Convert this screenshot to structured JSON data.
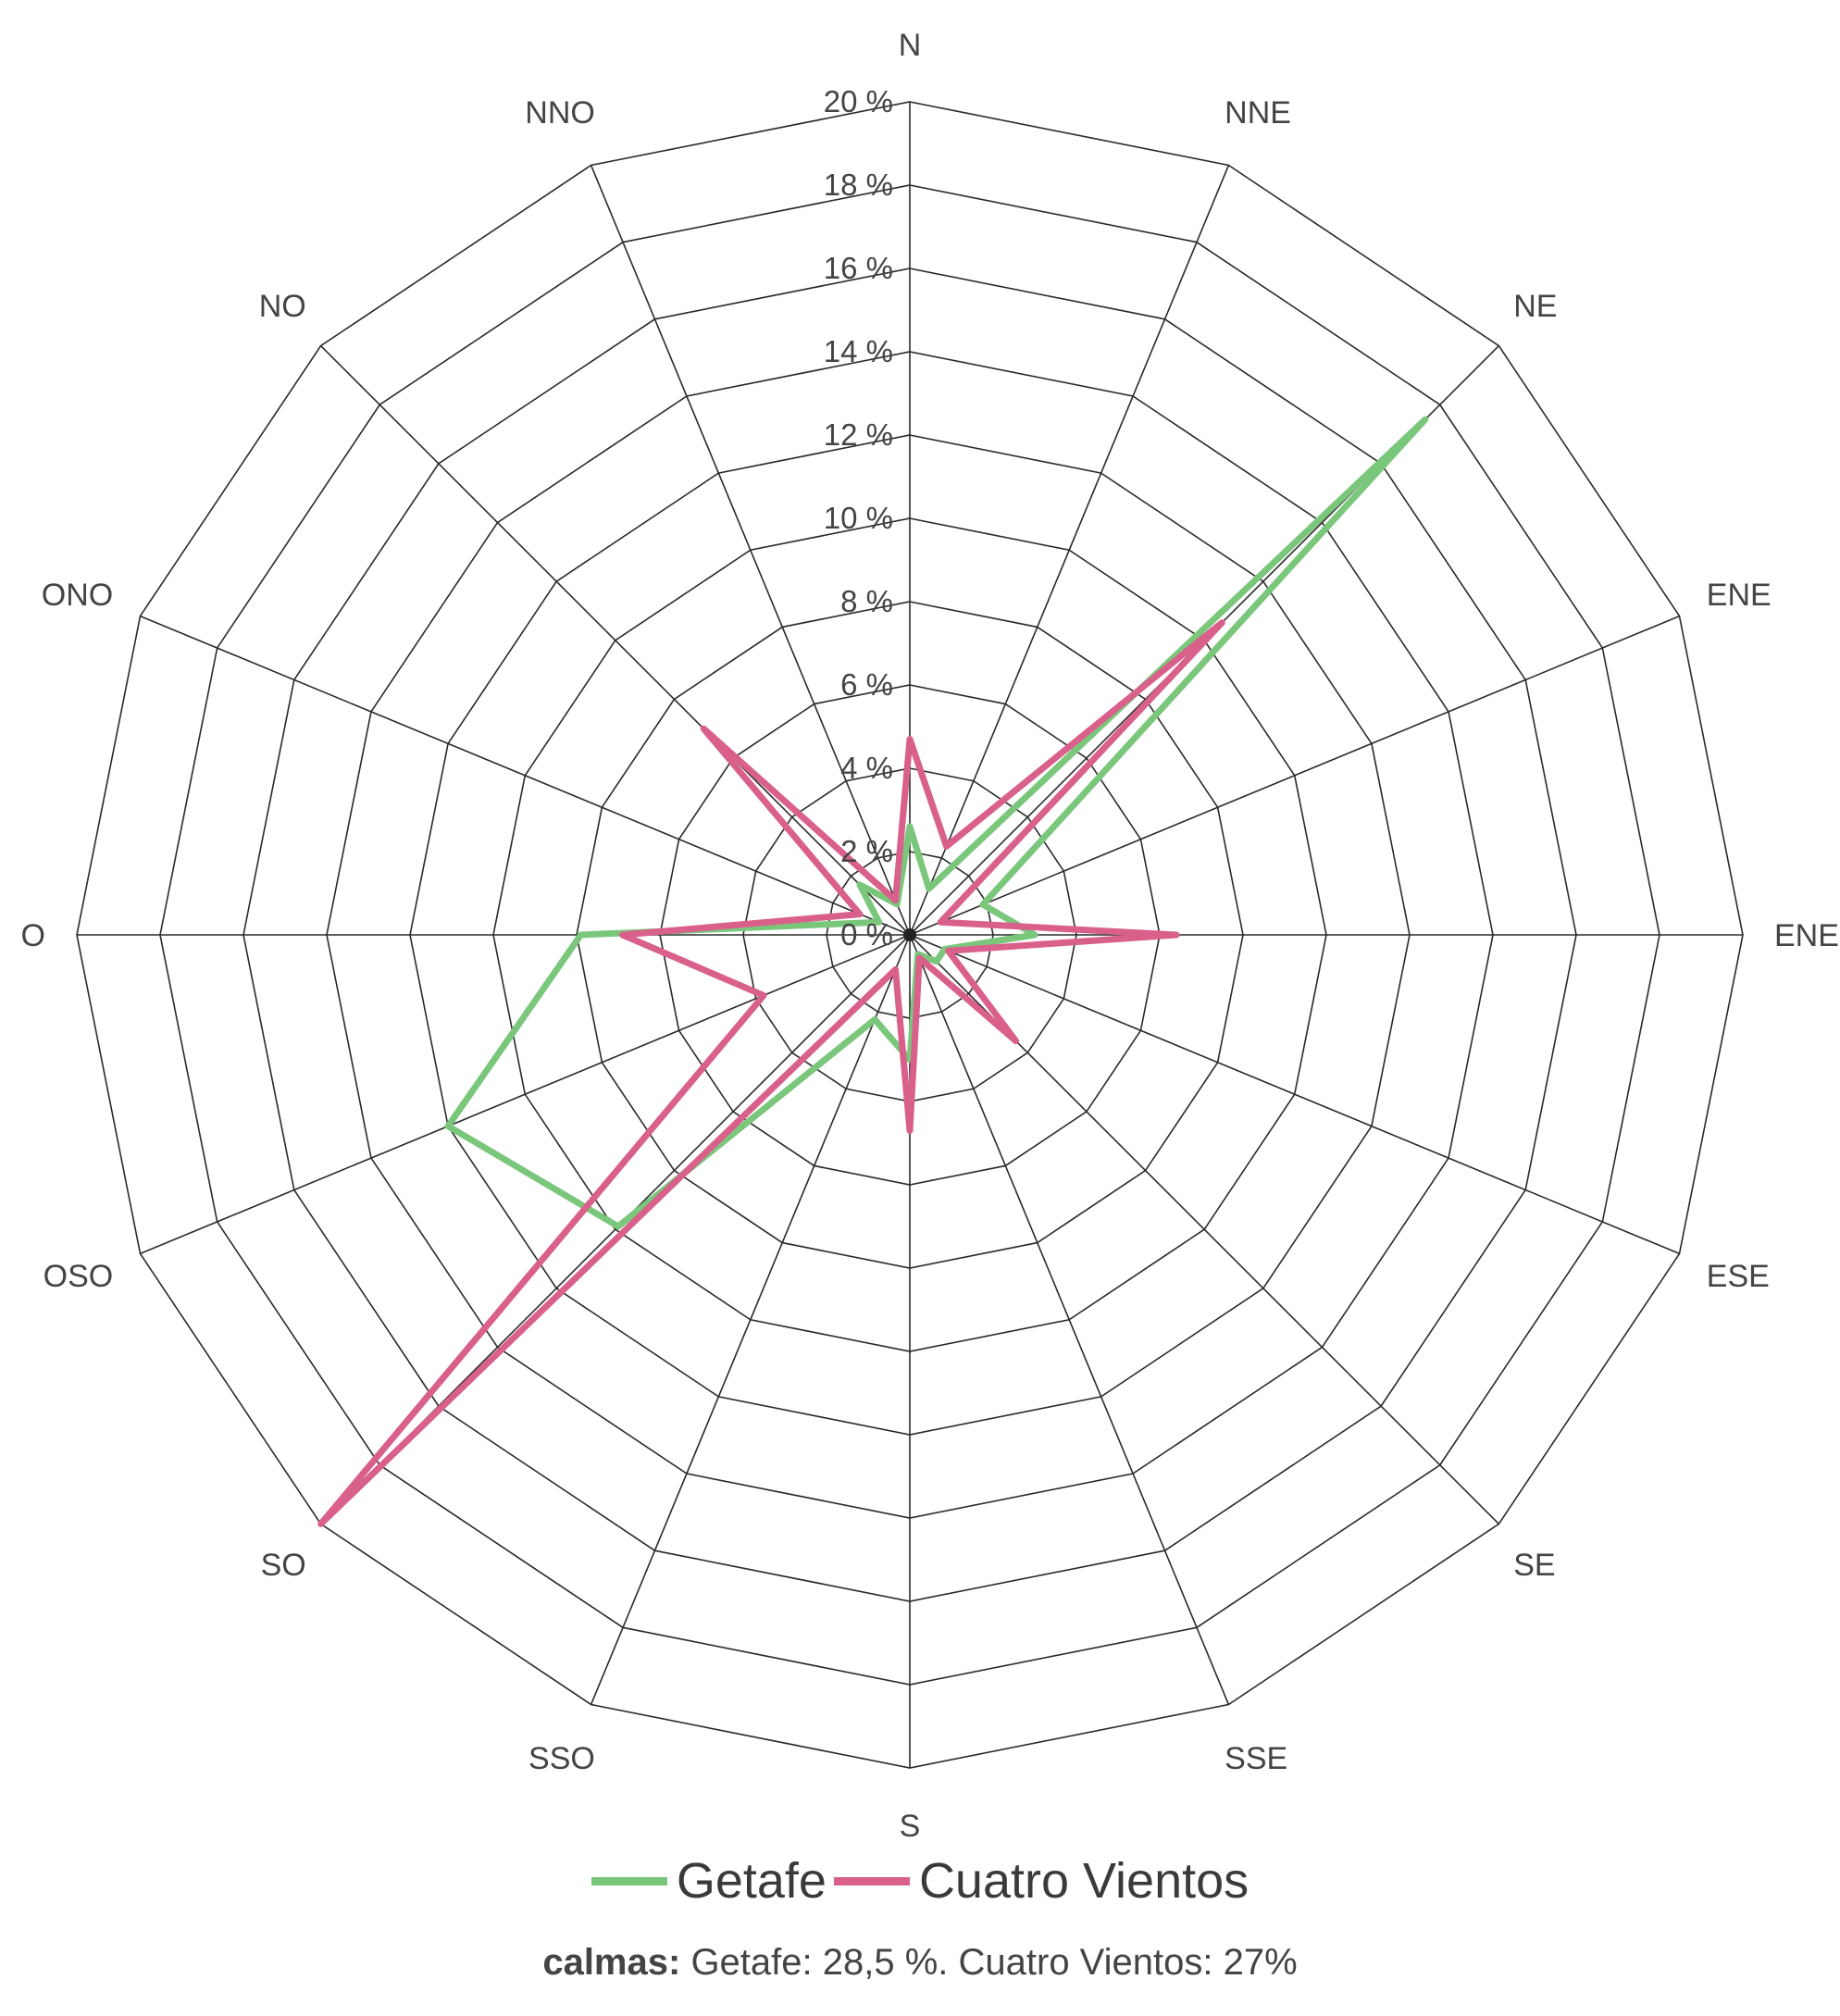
{
  "chart_data": {
    "type": "radar",
    "title": "",
    "directions": [
      "N",
      "NNE",
      "NE",
      "ENE",
      "ENE",
      "ESE",
      "SE",
      "SSE",
      "S",
      "SSO",
      "SO",
      "OSO",
      "O",
      "ONO",
      "NO",
      "NNO"
    ],
    "r_ticks": [
      "0 %",
      "2 %",
      "4 %",
      "6 %",
      "8 %",
      "10 %",
      "12 %",
      "14 %",
      "16 %",
      "18 %",
      "20 %"
    ],
    "r_range": [
      0,
      20
    ],
    "grid": true,
    "legend_position": "bottom",
    "series": [
      {
        "name": "Getafe",
        "color": "#7ac77c",
        "values": [
          2.6,
          1.2,
          17.5,
          1.9,
          3.0,
          0.9,
          0.9,
          0.5,
          3.0,
          2.2,
          9.9,
          12.0,
          7.9,
          0.8,
          1.7,
          0.8
        ]
      },
      {
        "name": "Cuatro Vientos",
        "color": "#d9608b",
        "values": [
          4.7,
          2.3,
          10.6,
          0.8,
          6.4,
          1.0,
          3.6,
          0.6,
          4.7,
          0.9,
          20.0,
          3.8,
          6.9,
          1.3,
          7.0,
          0.9
        ]
      }
    ]
  },
  "legend": {
    "items": [
      {
        "label": "Getafe",
        "color": "#7ac77c"
      },
      {
        "label": "Cuatro Vientos",
        "color": "#d9608b"
      }
    ]
  },
  "footnote": {
    "bold": "calmas:",
    "text": "Getafe: 28,5 %. Cuatro Vientos: 27%"
  }
}
